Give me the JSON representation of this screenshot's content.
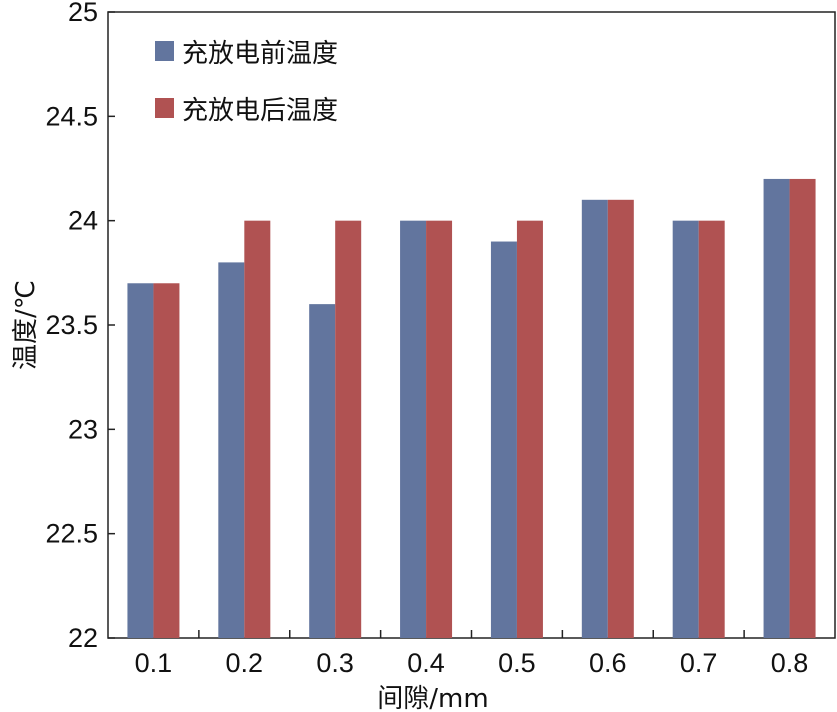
{
  "chart_data": {
    "type": "bar",
    "title": "",
    "xlabel": "间隙/mm",
    "ylabel": "温度/℃",
    "categories": [
      "0.1",
      "0.2",
      "0.3",
      "0.4",
      "0.5",
      "0.6",
      "0.7",
      "0.8"
    ],
    "ylim": [
      22,
      25
    ],
    "yticks": [
      "22",
      "22.5",
      "23",
      "23.5",
      "24",
      "24.5",
      "25"
    ],
    "grid": false,
    "legend_position": "top-left",
    "series": [
      {
        "name": "充放电前温度",
        "color": "#62759e",
        "values": [
          23.7,
          23.8,
          23.6,
          24.0,
          23.9,
          24.1,
          24.0,
          24.2
        ]
      },
      {
        "name": "充放电后温度",
        "color": "#b05252",
        "values": [
          23.7,
          24.0,
          24.0,
          24.0,
          24.0,
          24.1,
          24.0,
          24.2
        ]
      }
    ]
  }
}
